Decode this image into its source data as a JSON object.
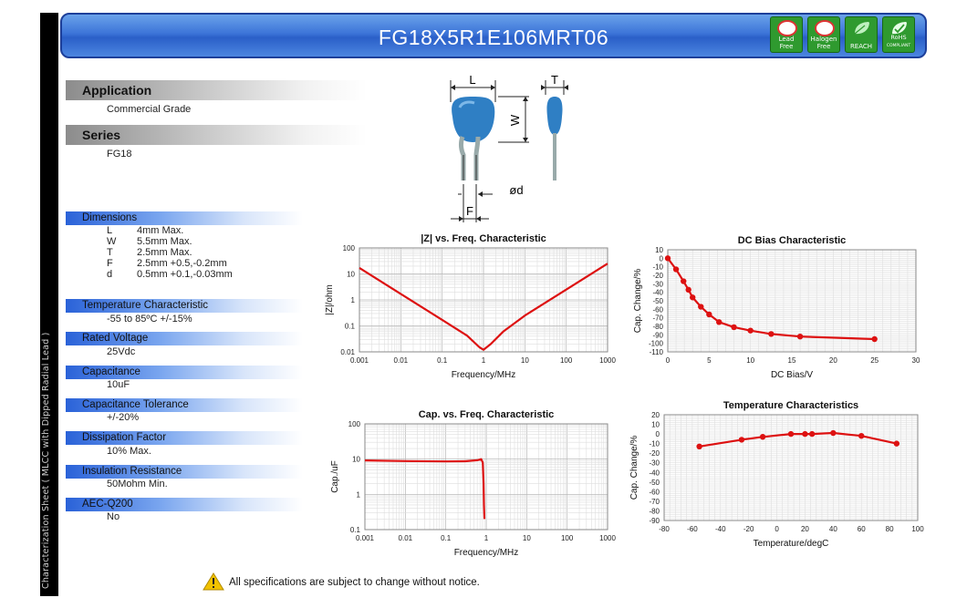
{
  "title": "FG18X5R1E106MRT06",
  "sidebar_text": "Characterization Sheet ( MLCC with Dipped Radial Lead )",
  "badges": [
    {
      "name": "lead-free-badge",
      "label1": "Lead",
      "label2": "Free",
      "icon": "pb-crossed-icon"
    },
    {
      "name": "halogen-free-badge",
      "label1": "Halogen",
      "label2": "Free",
      "icon": "br-crossed-icon"
    },
    {
      "name": "reach-badge",
      "label1": "REACH",
      "label2": "",
      "icon": "leaf-icon"
    },
    {
      "name": "rohs-badge",
      "label1": "RoHS",
      "label2": "COMPLIANT",
      "icon": "check-leaf-icon"
    }
  ],
  "application": {
    "heading": "Application",
    "value": "Commercial Grade"
  },
  "series": {
    "heading": "Series",
    "value": "FG18"
  },
  "diagram": {
    "L": "L",
    "T": "T",
    "W": "W",
    "d": "ød",
    "F": "F"
  },
  "dimensions": {
    "heading": "Dimensions",
    "rows": [
      {
        "k": "L",
        "v": "4mm Max."
      },
      {
        "k": "W",
        "v": "5.5mm Max."
      },
      {
        "k": "T",
        "v": "2.5mm Max."
      },
      {
        "k": "F",
        "v": "2.5mm +0.5,-0.2mm"
      },
      {
        "k": "d",
        "v": "0.5mm +0.1,-0.03mm"
      }
    ]
  },
  "temperature_characteristic": {
    "heading": "Temperature Characteristic",
    "value": "-55 to 85ºC +/-15%"
  },
  "rated_voltage": {
    "heading": "Rated Voltage",
    "value": "25Vdc"
  },
  "capacitance": {
    "heading": "Capacitance",
    "value": "10uF"
  },
  "capacitance_tolerance": {
    "heading": "Capacitance Tolerance",
    "value": "+/-20%"
  },
  "dissipation_factor": {
    "heading": "Dissipation Factor",
    "value": "10% Max."
  },
  "insulation_resistance": {
    "heading": "Insulation Resistance",
    "value": "50Mohm Min."
  },
  "aec_q200": {
    "heading": "AEC-Q200",
    "value": "No"
  },
  "footer": "All specifications are subject to change without notice.",
  "colors": {
    "curve": "#dd1111",
    "banner": "#3c74d8",
    "spec_header": "#2a62d8"
  },
  "chart_data": [
    {
      "type": "line",
      "title": "|Z| vs. Freq. Characteristic",
      "xlabel": "Frequency/MHz",
      "ylabel": "|Z|/ohm",
      "xscale": "log",
      "yscale": "log",
      "xlim": [
        0.001,
        1000
      ],
      "ylim": [
        0.01,
        100
      ],
      "x_ticks": [
        "0.001",
        "0.01",
        "0.1",
        "1",
        "10",
        "100",
        "1000"
      ],
      "y_ticks": [
        "0.01",
        "0.1",
        "1",
        "10",
        "100"
      ],
      "grid": true,
      "series": [
        {
          "x": [
            0.001,
            0.01,
            0.1,
            0.4,
            0.8,
            1,
            1.5,
            3,
            10,
            100,
            1000
          ],
          "y": [
            17,
            1.7,
            0.17,
            0.042,
            0.015,
            0.012,
            0.02,
            0.06,
            0.25,
            2.5,
            25
          ]
        }
      ]
    },
    {
      "type": "scatter",
      "title": "DC Bias Characteristic",
      "xlabel": "DC Bias/V",
      "ylabel": "Cap. Change/%",
      "xlim": [
        0,
        30
      ],
      "ylim": [
        -110,
        10
      ],
      "x_ticks": [
        "0",
        "5",
        "10",
        "15",
        "20",
        "25",
        "30"
      ],
      "y_ticks": [
        "10",
        "0",
        "-10",
        "-20",
        "-30",
        "-40",
        "-50",
        "-60",
        "-70",
        "-80",
        "-90",
        "-100",
        "-110"
      ],
      "grid": true,
      "series": [
        {
          "x": [
            0,
            1,
            1.9,
            2.5,
            3,
            4,
            5,
            6.2,
            8,
            10,
            12.5,
            16,
            25
          ],
          "y": [
            0,
            -13,
            -27,
            -37,
            -46,
            -57,
            -66,
            -75,
            -81,
            -85,
            -89,
            -92,
            -95
          ]
        }
      ]
    },
    {
      "type": "line",
      "title": "Cap. vs. Freq. Characteristic",
      "xlabel": "Frequency/MHz",
      "ylabel": "Cap./uF",
      "xscale": "log",
      "yscale": "log",
      "xlim": [
        0.001,
        1000
      ],
      "ylim": [
        0.1,
        100
      ],
      "x_ticks": [
        "0.001",
        "0.01",
        "0.1",
        "1",
        "10",
        "100",
        "1000"
      ],
      "y_ticks": [
        "0.1",
        "1",
        "10",
        "100"
      ],
      "grid": true,
      "series": [
        {
          "x": [
            0.001,
            0.01,
            0.1,
            0.3,
            0.6,
            0.75,
            0.82,
            0.86,
            0.88,
            0.9
          ],
          "y": [
            9.2,
            8.8,
            8.6,
            8.7,
            9.3,
            10,
            8,
            2,
            0.5,
            0.2
          ]
        }
      ]
    },
    {
      "type": "scatter",
      "title": "Temperature Characteristics",
      "xlabel": "Temperature/degC",
      "ylabel": "Cap. Change/%",
      "xlim": [
        -80,
        100
      ],
      "ylim": [
        -90,
        20
      ],
      "x_ticks": [
        "-80",
        "-60",
        "-40",
        "-20",
        "0",
        "20",
        "40",
        "60",
        "80",
        "100"
      ],
      "y_ticks": [
        "20",
        "10",
        "0",
        "-10",
        "-20",
        "-30",
        "-40",
        "-50",
        "-60",
        "-70",
        "-80",
        "-90"
      ],
      "grid": true,
      "series": [
        {
          "x": [
            -55,
            -25,
            -10,
            10,
            20,
            25,
            40,
            60,
            85
          ],
          "y": [
            -13,
            -6,
            -3,
            0,
            0,
            0,
            1,
            -2,
            -10
          ]
        }
      ]
    }
  ]
}
